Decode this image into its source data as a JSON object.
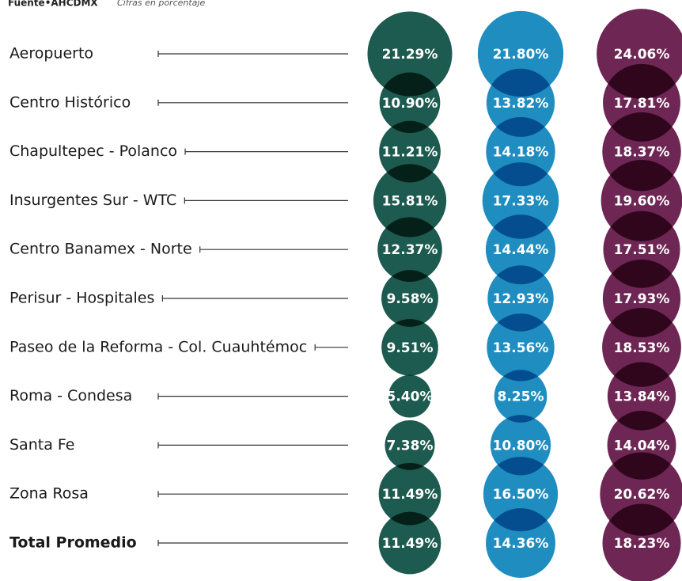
{
  "chart_data": {
    "type": "bubble",
    "source": "Fuente•AHCDMX",
    "note": "Cifras en porcentaje",
    "categories": [
      "Aeropuerto",
      "Centro Histórico",
      "Chapultepec - Polanco",
      "Insurgentes Sur - WTC",
      "Centro Banamex - Norte",
      "Perisur - Hospitales",
      "Paseo de la Reforma - Col. Cuauhtémoc",
      "Roma - Condesa",
      "Santa Fe",
      "Zona Rosa",
      "Total Promedio"
    ],
    "series": [
      {
        "color": "#1d5a4f",
        "values": [
          21.29,
          10.9,
          11.21,
          15.81,
          12.37,
          9.58,
          9.51,
          5.4,
          7.38,
          11.49,
          11.49
        ],
        "value_labels": [
          "21.29%",
          "10.90%",
          "11.21%",
          "15.81%",
          "12.37%",
          "9.58%",
          "9.51%",
          "5.40%",
          "7.38%",
          "11.49%",
          "11.49%"
        ]
      },
      {
        "color": "#1f8dc0",
        "values": [
          21.8,
          13.82,
          14.18,
          17.33,
          14.44,
          12.93,
          13.56,
          8.25,
          10.8,
          16.5,
          14.36
        ],
        "value_labels": [
          "21.80%",
          "13.82%",
          "14.18%",
          "17.33%",
          "14.44%",
          "12.93%",
          "13.56%",
          "8.25%",
          "10.80%",
          "16.50%",
          "14.36%"
        ]
      },
      {
        "color": "#6e2654",
        "values": [
          24.06,
          17.81,
          18.37,
          19.6,
          17.51,
          17.93,
          18.53,
          13.84,
          14.04,
          20.62,
          18.23
        ],
        "value_labels": [
          "24.06%",
          "17.81%",
          "18.37%",
          "19.60%",
          "17.51%",
          "17.93%",
          "18.53%",
          "13.84%",
          "14.04%",
          "20.62%",
          "18.23%"
        ]
      }
    ]
  }
}
